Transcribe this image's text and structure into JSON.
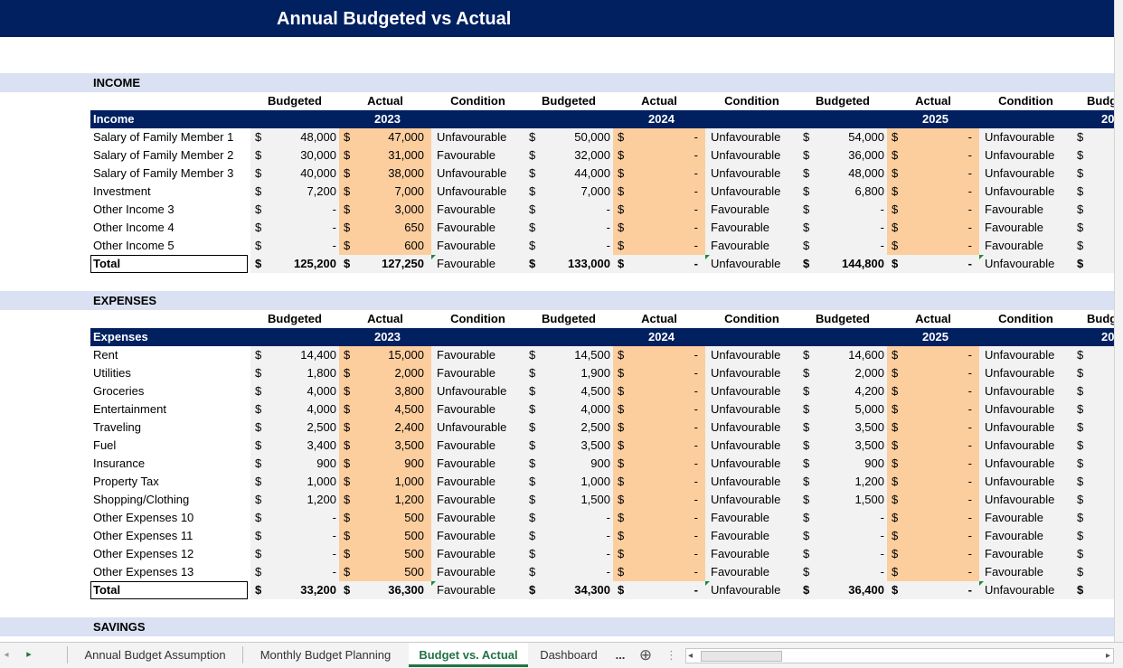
{
  "title": "Annual Budgeted vs Actual",
  "labels": {
    "budgeted": "Budgeted",
    "actual": "Actual",
    "condition": "Condition",
    "budgeted_cut": "Budg",
    "year_cut": "20",
    "total": "Total",
    "dollar": "$"
  },
  "years": [
    "2023",
    "2024",
    "2025"
  ],
  "income": {
    "section": "INCOME",
    "header": "Income",
    "rows": [
      {
        "name": "Salary of Family Member 1",
        "y": [
          [
            "48,000",
            "47,000",
            "Unfavourable"
          ],
          [
            "50,000",
            "-",
            "Unfavourable"
          ],
          [
            "54,000",
            "-",
            "Unfavourable"
          ]
        ]
      },
      {
        "name": "Salary of Family Member 2",
        "y": [
          [
            "30,000",
            "31,000",
            "Favourable"
          ],
          [
            "32,000",
            "-",
            "Unfavourable"
          ],
          [
            "36,000",
            "-",
            "Unfavourable"
          ]
        ]
      },
      {
        "name": "Salary of Family Member 3",
        "y": [
          [
            "40,000",
            "38,000",
            "Unfavourable"
          ],
          [
            "44,000",
            "-",
            "Unfavourable"
          ],
          [
            "48,000",
            "-",
            "Unfavourable"
          ]
        ]
      },
      {
        "name": "Investment",
        "y": [
          [
            "7,200",
            "7,000",
            "Unfavourable"
          ],
          [
            "7,000",
            "-",
            "Unfavourable"
          ],
          [
            "6,800",
            "-",
            "Unfavourable"
          ]
        ]
      },
      {
        "name": "Other Income 3",
        "y": [
          [
            "-",
            "3,000",
            "Favourable"
          ],
          [
            "-",
            "-",
            "Favourable"
          ],
          [
            "-",
            "-",
            "Favourable"
          ]
        ]
      },
      {
        "name": "Other Income 4",
        "y": [
          [
            "-",
            "650",
            "Favourable"
          ],
          [
            "-",
            "-",
            "Favourable"
          ],
          [
            "-",
            "-",
            "Favourable"
          ]
        ]
      },
      {
        "name": "Other Income 5",
        "y": [
          [
            "-",
            "600",
            "Favourable"
          ],
          [
            "-",
            "-",
            "Favourable"
          ],
          [
            "-",
            "-",
            "Favourable"
          ]
        ]
      }
    ],
    "total": [
      [
        "125,200",
        "127,250",
        "Favourable"
      ],
      [
        "133,000",
        "-",
        "Unfavourable"
      ],
      [
        "144,800",
        "-",
        "Unfavourable"
      ]
    ]
  },
  "expenses": {
    "section": "EXPENSES",
    "header": "Expenses",
    "rows": [
      {
        "name": "Rent",
        "y": [
          [
            "14,400",
            "15,000",
            "Favourable"
          ],
          [
            "14,500",
            "-",
            "Unfavourable"
          ],
          [
            "14,600",
            "-",
            "Unfavourable"
          ]
        ]
      },
      {
        "name": "Utilities",
        "y": [
          [
            "1,800",
            "2,000",
            "Favourable"
          ],
          [
            "1,900",
            "-",
            "Unfavourable"
          ],
          [
            "2,000",
            "-",
            "Unfavourable"
          ]
        ]
      },
      {
        "name": "Groceries",
        "y": [
          [
            "4,000",
            "3,800",
            "Unfavourable"
          ],
          [
            "4,500",
            "-",
            "Unfavourable"
          ],
          [
            "4,200",
            "-",
            "Unfavourable"
          ]
        ]
      },
      {
        "name": "Entertainment",
        "y": [
          [
            "4,000",
            "4,500",
            "Favourable"
          ],
          [
            "4,000",
            "-",
            "Unfavourable"
          ],
          [
            "5,000",
            "-",
            "Unfavourable"
          ]
        ]
      },
      {
        "name": "Traveling",
        "y": [
          [
            "2,500",
            "2,400",
            "Unfavourable"
          ],
          [
            "2,500",
            "-",
            "Unfavourable"
          ],
          [
            "3,500",
            "-",
            "Unfavourable"
          ]
        ]
      },
      {
        "name": "Fuel",
        "y": [
          [
            "3,400",
            "3,500",
            "Favourable"
          ],
          [
            "3,500",
            "-",
            "Unfavourable"
          ],
          [
            "3,500",
            "-",
            "Unfavourable"
          ]
        ]
      },
      {
        "name": "Insurance",
        "y": [
          [
            "900",
            "900",
            "Favourable"
          ],
          [
            "900",
            "-",
            "Unfavourable"
          ],
          [
            "900",
            "-",
            "Unfavourable"
          ]
        ]
      },
      {
        "name": "Property Tax",
        "y": [
          [
            "1,000",
            "1,000",
            "Favourable"
          ],
          [
            "1,000",
            "-",
            "Unfavourable"
          ],
          [
            "1,200",
            "-",
            "Unfavourable"
          ]
        ]
      },
      {
        "name": "Shopping/Clothing",
        "y": [
          [
            "1,200",
            "1,200",
            "Favourable"
          ],
          [
            "1,500",
            "-",
            "Unfavourable"
          ],
          [
            "1,500",
            "-",
            "Unfavourable"
          ]
        ]
      },
      {
        "name": "Other Expenses 10",
        "y": [
          [
            "-",
            "500",
            "Favourable"
          ],
          [
            "-",
            "-",
            "Favourable"
          ],
          [
            "-",
            "-",
            "Favourable"
          ]
        ]
      },
      {
        "name": "Other Expenses 11",
        "y": [
          [
            "-",
            "500",
            "Favourable"
          ],
          [
            "-",
            "-",
            "Favourable"
          ],
          [
            "-",
            "-",
            "Favourable"
          ]
        ]
      },
      {
        "name": "Other Expenses 12",
        "y": [
          [
            "-",
            "500",
            "Favourable"
          ],
          [
            "-",
            "-",
            "Favourable"
          ],
          [
            "-",
            "-",
            "Favourable"
          ]
        ]
      },
      {
        "name": "Other Expenses 13",
        "y": [
          [
            "-",
            "500",
            "Favourable"
          ],
          [
            "-",
            "-",
            "Favourable"
          ],
          [
            "-",
            "-",
            "Favourable"
          ]
        ]
      }
    ],
    "total": [
      [
        "33,200",
        "36,300",
        "Favourable"
      ],
      [
        "34,300",
        "-",
        "Unfavourable"
      ],
      [
        "36,400",
        "-",
        "Unfavourable"
      ]
    ]
  },
  "savings": {
    "section": "SAVINGS"
  },
  "tabs": [
    {
      "label": "Annual Budget Assumption",
      "active": false
    },
    {
      "label": "Monthly Budget Planning",
      "active": false
    },
    {
      "label": "Budget vs. Actual",
      "active": true
    },
    {
      "label": "Dashboard",
      "active": false
    }
  ],
  "tabbar": {
    "more": "...",
    "add": "⊕",
    "scroll_left": "◂",
    "scroll_right": "▸",
    "nav_next": "▸"
  },
  "colors": {
    "navy": "#002060",
    "band": "#d9e1f2",
    "actual_fill": "#fcce9e",
    "row_gray": "#f2f2f2",
    "active_tab": "#217346"
  }
}
